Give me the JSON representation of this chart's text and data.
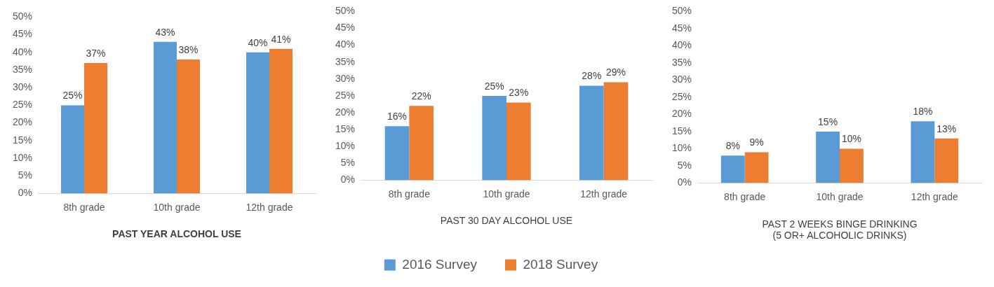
{
  "chart_data": [
    {
      "type": "bar",
      "xlabel": "PAST YEAR ALCOHOL USE",
      "categories": [
        "8th grade",
        "10th grade",
        "12th grade"
      ],
      "series": [
        {
          "color": "#5b9bd5",
          "values": [
            25,
            43,
            40
          ],
          "value_labels": [
            "25%",
            "43%",
            "40%"
          ]
        },
        {
          "color": "#ed7d31",
          "values": [
            37,
            38,
            41
          ],
          "value_labels": [
            "37%",
            "38%",
            "41%"
          ]
        }
      ],
      "ylim": [
        0,
        50
      ],
      "yticks": [
        {
          "value": 0,
          "label": "0%"
        },
        {
          "value": 5,
          "label": "5%"
        },
        {
          "value": 10,
          "label": "10%"
        },
        {
          "value": 15,
          "label": "15%"
        },
        {
          "value": 20,
          "label": "20%"
        },
        {
          "value": 25,
          "label": "25%"
        },
        {
          "value": 30,
          "label": "30%"
        },
        {
          "value": 35,
          "label": "35%"
        },
        {
          "value": 40,
          "label": "40%"
        },
        {
          "value": 45,
          "label": "45%"
        },
        {
          "value": 50,
          "label": "50%"
        }
      ]
    },
    {
      "type": "bar",
      "xlabel": "PAST 30 DAY ALCOHOL USE",
      "categories": [
        "8th grade",
        "10th grade",
        "12th grade"
      ],
      "series": [
        {
          "name": "2016 Survey",
          "color": "#5b9bd5",
          "values": [
            16,
            25,
            28
          ],
          "value_labels": [
            "16%",
            "25%",
            "28%"
          ]
        },
        {
          "name": "2018 Survey",
          "color": "#ed7d31",
          "values": [
            22,
            23,
            29
          ],
          "value_labels": [
            "22%",
            "23%",
            "29%"
          ]
        }
      ],
      "ylim": [
        0,
        50
      ],
      "yticks": [
        {
          "value": 0,
          "label": "0%"
        },
        {
          "value": 5,
          "label": "5%"
        },
        {
          "value": 10,
          "label": "10%"
        },
        {
          "value": 15,
          "label": "15%"
        },
        {
          "value": 20,
          "label": "20%"
        },
        {
          "value": 25,
          "label": "25%"
        },
        {
          "value": 30,
          "label": "30%"
        },
        {
          "value": 35,
          "label": "35%"
        },
        {
          "value": 40,
          "label": "40%"
        },
        {
          "value": 45,
          "label": "45%"
        },
        {
          "value": 50,
          "label": "50%"
        }
      ],
      "legend": "bottom"
    },
    {
      "type": "bar",
      "xlabel": "PAST 2 WEEKS BINGE DRINKING\n(5 OR+ ALCOHOLIC DRINKS)",
      "categories": [
        "8th grade",
        "10th grade",
        "12th grade"
      ],
      "series": [
        {
          "color": "#5b9bd5",
          "values": [
            8,
            15,
            18
          ],
          "value_labels": [
            "8%",
            "15%",
            "18%"
          ]
        },
        {
          "color": "#ed7d31",
          "values": [
            9,
            10,
            13
          ],
          "value_labels": [
            "9%",
            "10%",
            "13%"
          ]
        }
      ],
      "ylim": [
        0,
        50
      ],
      "yticks": [
        {
          "value": 0,
          "label": "0%"
        },
        {
          "value": 5,
          "label": "5%"
        },
        {
          "value": 10,
          "label": "10%"
        },
        {
          "value": 15,
          "label": "15%"
        },
        {
          "value": 20,
          "label": "20%"
        },
        {
          "value": 25,
          "label": "25%"
        },
        {
          "value": 30,
          "label": "30%"
        },
        {
          "value": 35,
          "label": "35%"
        },
        {
          "value": 40,
          "label": "40%"
        },
        {
          "value": 45,
          "label": "45%"
        },
        {
          "value": 50,
          "label": "50%"
        }
      ]
    }
  ]
}
